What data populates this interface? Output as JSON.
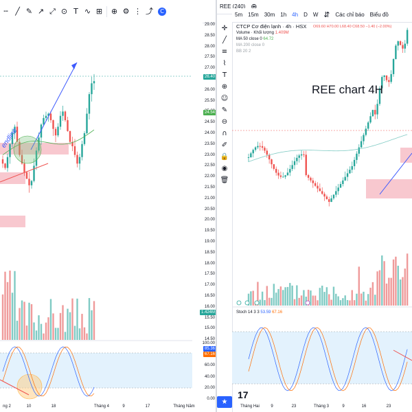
{
  "left_pane": {
    "toolbar": {
      "icons": [
        "dash-line-icon",
        "trendline-icon",
        "pencil-icon",
        "arrow-icon",
        "ruler-icon",
        "circle-icon",
        "text-icon",
        "wave-icon",
        "grid-icon",
        "zoom-icon",
        "gear-icon",
        "settings-icon",
        "share-icon",
        "close-icon"
      ],
      "text_tool": "T",
      "logo": "C"
    },
    "price_axis": [
      "29.00",
      "28.50",
      "28.00",
      "27.50",
      "27.00",
      "26.50",
      "26.00",
      "25.50",
      "25.00",
      "24.50",
      "24.00",
      "23.50",
      "23.00",
      "22.50",
      "22.00",
      "21.50",
      "21.00",
      "20.50",
      "20.00",
      "19.50",
      "19.00",
      "18.50",
      "18.00",
      "17.50",
      "17.00",
      "16.50",
      "16.00",
      "15.50",
      "15.00",
      "14.50"
    ],
    "tags": {
      "price_a": "26.40",
      "price_b": "24.54",
      "volume": "1.424M",
      "stoch_a": "85.36",
      "stoch_b": "67.16"
    },
    "stoch_axis": [
      "100.00",
      "80.00",
      "60.00",
      "40.00",
      "20.00",
      "0.00"
    ],
    "annotation_text": "endline",
    "time_axis": [
      "ng 2",
      "10",
      "18",
      "Tháng 4",
      "9",
      "17",
      "Tháng Năm"
    ],
    "colors": {
      "up": "#26a69a",
      "down": "#ef5350",
      "ma": "#4caf50",
      "trend": "#3d5afe",
      "zone": "#f8c8cf",
      "stoch_fill": "#e3f2fd"
    }
  },
  "right_pane": {
    "toolbar": {
      "symbol": "REE (240)",
      "add_icon": "plus-icon",
      "timeframes": [
        "5m",
        "15m",
        "30m",
        "1h",
        "4h",
        "D",
        "W"
      ],
      "active_timeframe": "4h",
      "compare_icon": "compare-icon",
      "alerts": "Các chỉ báo",
      "more": "Biểu đồ"
    },
    "title": "CTCP Cơ điện lạnh · 4h · HSX",
    "ohlc": "O69.60 H70.00 L68.40 C68.50 −1.40 (−2.00%)",
    "indicators": [
      {
        "name": "Volume · Khối lượng",
        "value": "1.409M"
      },
      {
        "name": "MA 50 close 0",
        "value": "64.72"
      },
      {
        "name": "MA 200 close 0",
        "value": ""
      },
      {
        "name": "BB 20 2",
        "value": ""
      }
    ],
    "overlay_title": "REE chart 4H",
    "stoch_label": "Stoch 14 3 3",
    "stoch_values": [
      "53.59",
      "67.16"
    ],
    "time_axis": [
      "Tháng Hai",
      "9",
      "23",
      "Tháng 3",
      "9",
      "16",
      "23"
    ],
    "logo": "17"
  }
}
